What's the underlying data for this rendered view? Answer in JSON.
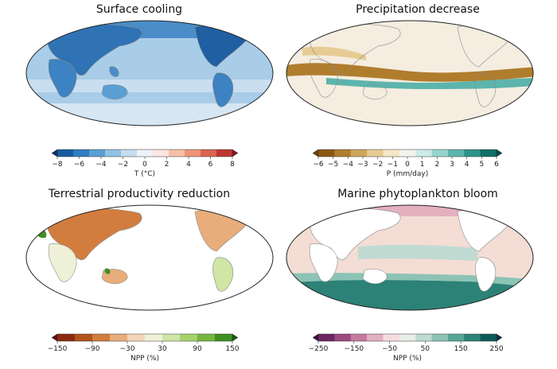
{
  "panels": [
    {
      "id": "surface-cooling",
      "title": "Surface cooling",
      "colorbar": {
        "label": "T (°C)",
        "ticks": [
          "−8",
          "−6",
          "−4",
          "−2",
          "0",
          "2",
          "4",
          "6",
          "8"
        ],
        "colors": [
          "#08306b",
          "#1a5a9e",
          "#2f7cc0",
          "#5a9fd2",
          "#90c2e3",
          "#c6dcef",
          "#eef3f8",
          "#fbe7df",
          "#f6c0a6",
          "#ee9479",
          "#db6450",
          "#bd3633",
          "#8f1421"
        ],
        "ocean_fill": "#a9cde8",
        "land_fill": "#2f73b5"
      }
    },
    {
      "id": "precipitation-decrease",
      "title": "Precipitation decrease",
      "colorbar": {
        "label": "P (mm/day)",
        "ticks": [
          "−6",
          "−5",
          "−4",
          "−3",
          "−2",
          "−1",
          "0",
          "1",
          "2",
          "3",
          "4",
          "5",
          "6"
        ],
        "colors": [
          "#6b3f07",
          "#8b5a12",
          "#b07d2d",
          "#cfa55a",
          "#e6cc93",
          "#f5e7c6",
          "#f5f3ee",
          "#cdebe7",
          "#95d4cd",
          "#5cb5ac",
          "#2e918a",
          "#0f6f69",
          "#014b45"
        ],
        "ocean_fill": "#f4ede0",
        "land_fill": "#f7f2e8"
      }
    },
    {
      "id": "terrestrial-productivity-reduction",
      "title": "Terrestrial productivity reduction",
      "colorbar": {
        "label": "NPP (%)",
        "ticks": [
          "−150",
          "−90",
          "−30",
          "30",
          "90",
          "150"
        ],
        "colors": [
          "#67001f",
          "#8c2a0f",
          "#b3531a",
          "#d27d3e",
          "#e8ad7a",
          "#f4d7b8",
          "#eef1d8",
          "#cfe6a4",
          "#a6d36c",
          "#74b63f",
          "#3f8f22",
          "#125f10"
        ],
        "ocean_fill": "#ffffff",
        "land_fill": "#dcae80"
      }
    },
    {
      "id": "marine-phytoplankton-bloom",
      "title": "Marine phytoplankton bloom",
      "colorbar": {
        "label": "NPP (%)",
        "ticks": [
          "−250",
          "−150",
          "−50",
          "50",
          "150",
          "250"
        ],
        "colors": [
          "#3b0f3f",
          "#6b2560",
          "#9b4a7e",
          "#c6799d",
          "#e3b0bf",
          "#f4dcdf",
          "#e9eee9",
          "#c0dbd2",
          "#8cc3b5",
          "#57a596",
          "#2c8276",
          "#0c5b58",
          "#09304a"
        ],
        "ocean_fill": "#f3ddd5",
        "land_fill": "#ffffff"
      }
    }
  ]
}
